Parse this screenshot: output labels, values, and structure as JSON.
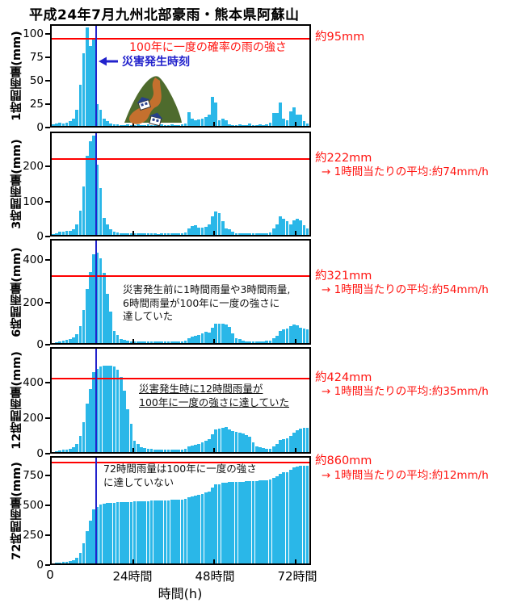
{
  "chart_data": {
    "type": "bar",
    "title": "平成24年7月九州北部豪雨・熊本県阿蘇山",
    "x": {
      "unit": "hour",
      "range_hours": [
        1,
        76
      ],
      "ticks": [
        0,
        24,
        48,
        72
      ],
      "tick_labels": [
        "0",
        "24時間",
        "48時間",
        "72時間"
      ],
      "axis_label": "時間(h)"
    },
    "event_marker": {
      "hour": 13.2,
      "label": "災害発生時刻",
      "color": "#2222cc"
    },
    "bar_color": "#2ab7e8",
    "threshold_color": "#ff0000",
    "derivation_note": "panels with window_hours>1 depict rolling sums of hourly_rainfall_mm over the window",
    "hourly_rainfall_mm": [
      2,
      3,
      4,
      3,
      4,
      5,
      8,
      18,
      45,
      80,
      108,
      88,
      96,
      24,
      18,
      8,
      5,
      3,
      2,
      2,
      1,
      1,
      2,
      1,
      1,
      2,
      1,
      1,
      2,
      1,
      1,
      1,
      2,
      1,
      1,
      2,
      1,
      1,
      2,
      3,
      15,
      8,
      6,
      7,
      8,
      10,
      12,
      32,
      26,
      6,
      8,
      6,
      2,
      1,
      1,
      2,
      1,
      1,
      3,
      1,
      1,
      2,
      1,
      2,
      4,
      14,
      14,
      26,
      8,
      6,
      16,
      20,
      12,
      12,
      5,
      3
    ],
    "panels": [
      {
        "label": "1時間雨量(mm)",
        "window_hours": 1,
        "ylim": [
          0,
          110
        ],
        "yticks": [
          0,
          25,
          50,
          75,
          100
        ],
        "threshold_mm": 95,
        "threshold_label": "約95mm",
        "avg_label": null,
        "note_red": "100年に一度の確率の雨の強さ",
        "note_lines": []
      },
      {
        "label": "3時間雨量(mm)",
        "window_hours": 3,
        "ylim": [
          0,
          300
        ],
        "yticks": [
          0,
          100,
          200
        ],
        "threshold_mm": 222,
        "threshold_label": "約222mm",
        "avg_label": "→ 1時間当たりの平均:約74mm/h",
        "note_lines": []
      },
      {
        "label": "6時間雨量(mm)",
        "window_hours": 6,
        "ylim": [
          0,
          500
        ],
        "yticks": [
          0,
          200,
          400
        ],
        "threshold_mm": 321,
        "threshold_label": "約321mm",
        "avg_label": "→ 1時間当たりの平均:約54mm/h",
        "note_lines": [
          "災害発生前に1時間雨量や3時間雨量,",
          "6時間雨量が100年に一度の強さに",
          "達していた"
        ]
      },
      {
        "label": "12時間雨量(mm)",
        "window_hours": 12,
        "ylim": [
          0,
          600
        ],
        "yticks": [
          0,
          200,
          400
        ],
        "threshold_mm": 424,
        "threshold_label": "約424mm",
        "avg_label": "→ 1時間当たりの平均:約35mm/h",
        "note_underline": true,
        "note_lines": [
          "災害発生時に12時間雨量が",
          "100年に一度の強さに達していた"
        ]
      },
      {
        "label": "72時間雨量(mm)",
        "window_hours": 72,
        "ylim": [
          0,
          910
        ],
        "yticks": [
          0,
          250,
          500,
          750
        ],
        "threshold_mm": 860,
        "threshold_label": "約860mm",
        "avg_label": "→ 1時間当たりの平均:約12mm/h",
        "note_lines": [
          "72時間雨量は100年に一度の強さ",
          "に達していない"
        ]
      }
    ]
  }
}
